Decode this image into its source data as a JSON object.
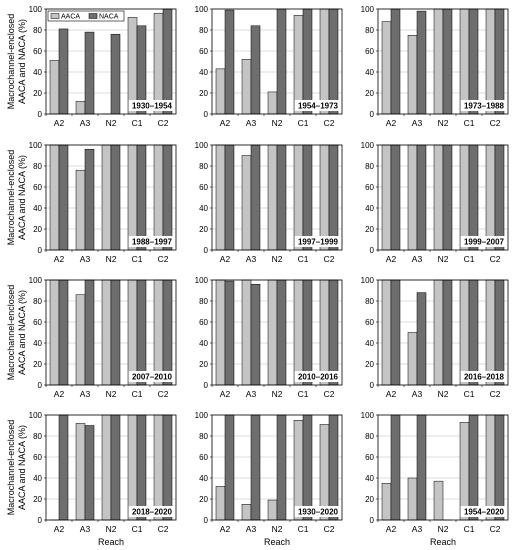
{
  "figure": {
    "y_axis_label_line1": "Macrochannel-enclosed",
    "y_axis_label_line2": "AACA and NACA (%)",
    "x_axis_label": "Reach"
  },
  "legend": [
    "AACA",
    "NACA"
  ],
  "colors": {
    "AACA": "#c4c4c4",
    "NACA": "#6e6e6e",
    "grid": "#bdbdbd",
    "axis": "#000000"
  },
  "chart_data": [
    {
      "type": "bar",
      "title": "1930–1954",
      "categories": [
        "A2",
        "A3",
        "N2",
        "C1",
        "C2"
      ],
      "ylim": [
        0,
        100
      ],
      "yticks": [
        0,
        20,
        40,
        60,
        80,
        100
      ],
      "legend": "top-left",
      "series": [
        {
          "name": "AACA",
          "values": [
            51,
            12,
            0,
            92,
            96
          ]
        },
        {
          "name": "NACA",
          "values": [
            81,
            78,
            76,
            84,
            100
          ]
        }
      ]
    },
    {
      "type": "bar",
      "title": "1954–1973",
      "categories": [
        "A2",
        "A3",
        "N2",
        "C1",
        "C2"
      ],
      "ylim": [
        0,
        100
      ],
      "yticks": [
        0,
        20,
        40,
        60,
        80,
        100
      ],
      "series": [
        {
          "name": "AACA",
          "values": [
            43,
            52,
            21,
            94,
            100
          ]
        },
        {
          "name": "NACA",
          "values": [
            99,
            84,
            100,
            100,
            100
          ]
        }
      ]
    },
    {
      "type": "bar",
      "title": "1973–1988",
      "categories": [
        "A2",
        "A3",
        "N2",
        "C1",
        "C2"
      ],
      "ylim": [
        0,
        100
      ],
      "yticks": [
        0,
        20,
        40,
        60,
        80,
        100
      ],
      "series": [
        {
          "name": "AACA",
          "values": [
            88,
            75,
            100,
            100,
            100
          ]
        },
        {
          "name": "NACA",
          "values": [
            100,
            98,
            100,
            100,
            100
          ]
        }
      ]
    },
    {
      "type": "bar",
      "title": "1988–1997",
      "categories": [
        "A2",
        "A3",
        "N2",
        "C1",
        "C2"
      ],
      "ylim": [
        0,
        100
      ],
      "yticks": [
        0,
        20,
        40,
        60,
        80,
        100
      ],
      "series": [
        {
          "name": "AACA",
          "values": [
            100,
            76,
            100,
            100,
            100
          ]
        },
        {
          "name": "NACA",
          "values": [
            100,
            96,
            100,
            100,
            100
          ]
        }
      ]
    },
    {
      "type": "bar",
      "title": "1997–1999",
      "categories": [
        "A2",
        "A3",
        "N2",
        "C1",
        "C2"
      ],
      "ylim": [
        0,
        100
      ],
      "yticks": [
        0,
        20,
        40,
        60,
        80,
        100
      ],
      "series": [
        {
          "name": "AACA",
          "values": [
            100,
            90,
            100,
            100,
            100
          ]
        },
        {
          "name": "NACA",
          "values": [
            100,
            100,
            100,
            100,
            100
          ]
        }
      ]
    },
    {
      "type": "bar",
      "title": "1999–2007",
      "categories": [
        "A2",
        "A3",
        "N2",
        "C1",
        "C2"
      ],
      "ylim": [
        0,
        100
      ],
      "yticks": [
        0,
        20,
        40,
        60,
        80,
        100
      ],
      "series": [
        {
          "name": "AACA",
          "values": [
            100,
            100,
            100,
            100,
            100
          ]
        },
        {
          "name": "NACA",
          "values": [
            100,
            100,
            100,
            100,
            100
          ]
        }
      ]
    },
    {
      "type": "bar",
      "title": "2007–2010",
      "categories": [
        "A2",
        "A3",
        "N2",
        "C1",
        "C2"
      ],
      "ylim": [
        0,
        100
      ],
      "yticks": [
        0,
        20,
        40,
        60,
        80,
        100
      ],
      "series": [
        {
          "name": "AACA",
          "values": [
            100,
            86,
            100,
            100,
            100
          ]
        },
        {
          "name": "NACA",
          "values": [
            100,
            100,
            100,
            100,
            100
          ]
        }
      ]
    },
    {
      "type": "bar",
      "title": "2010–2016",
      "categories": [
        "A2",
        "A3",
        "N2",
        "C1",
        "C2"
      ],
      "ylim": [
        0,
        100
      ],
      "yticks": [
        0,
        20,
        40,
        60,
        80,
        100
      ],
      "series": [
        {
          "name": "AACA",
          "values": [
            100,
            100,
            100,
            100,
            100
          ]
        },
        {
          "name": "NACA",
          "values": [
            99,
            96,
            100,
            100,
            100
          ]
        }
      ]
    },
    {
      "type": "bar",
      "title": "2016–2018",
      "categories": [
        "A2",
        "A3",
        "N2",
        "C1",
        "C2"
      ],
      "ylim": [
        0,
        100
      ],
      "yticks": [
        0,
        20,
        40,
        60,
        80,
        100
      ],
      "series": [
        {
          "name": "AACA",
          "values": [
            100,
            50,
            100,
            100,
            100
          ]
        },
        {
          "name": "NACA",
          "values": [
            100,
            88,
            100,
            100,
            100
          ]
        }
      ]
    },
    {
      "type": "bar",
      "title": "2018–2020",
      "categories": [
        "A2",
        "A3",
        "N2",
        "C1",
        "C2"
      ],
      "ylim": [
        0,
        100
      ],
      "yticks": [
        0,
        20,
        40,
        60,
        80,
        100
      ],
      "series": [
        {
          "name": "AACA",
          "values": [
            0,
            92,
            100,
            100,
            100
          ]
        },
        {
          "name": "NACA",
          "values": [
            100,
            90,
            100,
            100,
            100
          ]
        }
      ]
    },
    {
      "type": "bar",
      "title": "1930–2020",
      "categories": [
        "A2",
        "A3",
        "N2",
        "C1",
        "C2"
      ],
      "ylim": [
        0,
        100
      ],
      "yticks": [
        0,
        20,
        40,
        60,
        80,
        100
      ],
      "series": [
        {
          "name": "AACA",
          "values": [
            32,
            15,
            19,
            95,
            91
          ]
        },
        {
          "name": "NACA",
          "values": [
            100,
            100,
            100,
            100,
            100
          ]
        }
      ]
    },
    {
      "type": "bar",
      "title": "1954–2020",
      "categories": [
        "A2",
        "A3",
        "N2",
        "C1",
        "C2"
      ],
      "ylim": [
        0,
        100
      ],
      "yticks": [
        0,
        20,
        40,
        60,
        80,
        100
      ],
      "series": [
        {
          "name": "AACA",
          "values": [
            35,
            40,
            37,
            93,
            100
          ]
        },
        {
          "name": "NACA",
          "values": [
            100,
            100,
            0,
            100,
            100
          ]
        }
      ]
    }
  ]
}
